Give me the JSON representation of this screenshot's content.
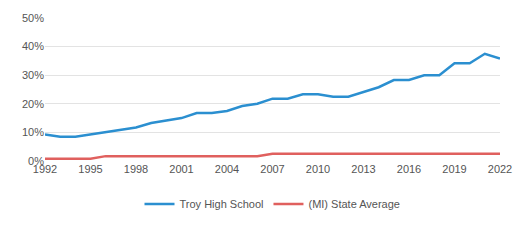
{
  "chart_data": {
    "type": "line",
    "x": [
      1992,
      1993,
      1994,
      1995,
      1996,
      1997,
      1998,
      1999,
      2000,
      2001,
      2002,
      2003,
      2004,
      2005,
      2006,
      2007,
      2008,
      2009,
      2010,
      2011,
      2012,
      2013,
      2014,
      2015,
      2016,
      2017,
      2018,
      2019,
      2020,
      2021,
      2022
    ],
    "series": [
      {
        "name": "Troy High School",
        "color": "#2b8fd0",
        "values": [
          9.3,
          8.5,
          8.5,
          9.3,
          10,
          10.8,
          11.7,
          13.3,
          14.2,
          15,
          16.8,
          16.8,
          17.5,
          19.2,
          20,
          21.8,
          21.8,
          23.3,
          23.3,
          22.5,
          22.5,
          24.2,
          25.8,
          28.3,
          28.3,
          30,
          30,
          34.2,
          34.2,
          37.5,
          35.8
        ]
      },
      {
        "name": "(MI) State Average",
        "color": "#e0605e",
        "values": [
          0.8,
          0.8,
          0.8,
          0.8,
          1.7,
          1.7,
          1.7,
          1.7,
          1.7,
          1.7,
          1.7,
          1.7,
          1.7,
          1.7,
          1.7,
          2.5,
          2.5,
          2.5,
          2.5,
          2.5,
          2.5,
          2.5,
          2.5,
          2.5,
          2.5,
          2.5,
          2.5,
          2.5,
          2.5,
          2.5,
          2.5
        ]
      }
    ],
    "xlim": [
      1992,
      2022
    ],
    "xticks": [
      1992,
      1995,
      1998,
      2001,
      2004,
      2007,
      2010,
      2013,
      2016,
      2019,
      2022
    ],
    "ylim": [
      0,
      50
    ],
    "yticks": [
      {
        "value": 0,
        "label": "0%"
      },
      {
        "value": 10,
        "label": "10%"
      },
      {
        "value": 20,
        "label": "20%"
      },
      {
        "value": 30,
        "label": "30%"
      },
      {
        "value": 40,
        "label": "40%"
      },
      {
        "value": 50,
        "label": "50%"
      }
    ],
    "grid": true,
    "legend": "bottom"
  }
}
